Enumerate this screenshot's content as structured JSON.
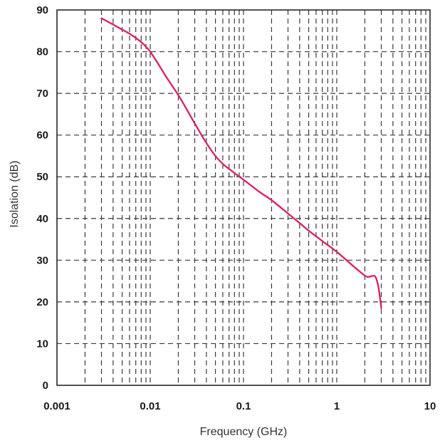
{
  "chart_data": {
    "type": "line",
    "title": "",
    "xlabel": "Frequency (GHz)",
    "ylabel": "Isolation (dB)",
    "x_scale": "log",
    "xlim": [
      0.001,
      10
    ],
    "ylim": [
      0,
      90
    ],
    "x_ticks": [
      0.001,
      0.01,
      0.1,
      1,
      10
    ],
    "x_tick_labels": [
      "0.001",
      "0.01",
      "0.1",
      "1",
      "10"
    ],
    "y_ticks": [
      0,
      10,
      20,
      30,
      40,
      50,
      60,
      70,
      80,
      90
    ],
    "y_tick_labels": [
      "0",
      "10",
      "20",
      "30",
      "40",
      "50",
      "60",
      "70",
      "80",
      "90"
    ],
    "grid": true,
    "line_color": "#d6266f",
    "series": [
      {
        "x": [
          0.003,
          0.004,
          0.005,
          0.006,
          0.007,
          0.008,
          0.009,
          0.01,
          0.012,
          0.015,
          0.02,
          0.025,
          0.03,
          0.04,
          0.05,
          0.06,
          0.07,
          0.08,
          0.1,
          0.15,
          0.2,
          0.3,
          0.4,
          0.5,
          0.7,
          1,
          1.5,
          2,
          2.2,
          2.4,
          2.6,
          2.8,
          3.0
        ],
        "y": [
          88,
          86.5,
          85.3,
          84.3,
          83.3,
          82.3,
          81.2,
          80,
          77.3,
          73.8,
          69.6,
          65.9,
          62.8,
          58.1,
          55,
          53.1,
          51.9,
          50.9,
          49.3,
          46.3,
          44.4,
          41.2,
          38.9,
          37.1,
          34.6,
          32,
          28.6,
          26.3,
          26,
          26.2,
          26,
          23.5,
          18.5
        ]
      }
    ]
  }
}
